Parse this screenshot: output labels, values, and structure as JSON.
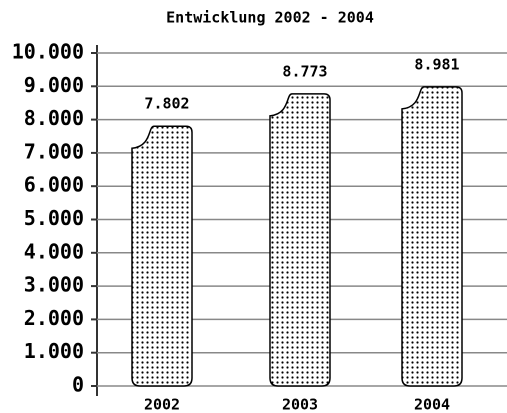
{
  "chart_data": {
    "type": "bar",
    "title": "Entwicklung 2002 - 2004",
    "categories": [
      "2002",
      "2003",
      "2004"
    ],
    "values": [
      7802,
      8773,
      8981
    ],
    "value_labels": [
      "7.802",
      "8.773",
      "8.981"
    ],
    "ylim": [
      0,
      10000
    ],
    "yticks": [
      0,
      {
        "value": 1000,
        "label": "1.000"
      },
      {
        "value": 2000,
        "label": "2.000"
      },
      {
        "value": 3000,
        "label": "3.000"
      },
      {
        "value": 4000,
        "label": "4.000"
      },
      {
        "value": 5000,
        "label": "5.000"
      },
      {
        "value": 6000,
        "label": "6.000"
      },
      {
        "value": 7000,
        "label": "7.000"
      },
      {
        "value": 8000,
        "label": "8.000"
      },
      {
        "value": 9000,
        "label": "9.000"
      },
      {
        "value": 10000,
        "label": "10.000"
      }
    ],
    "grid": true,
    "color": "#ffffff"
  }
}
